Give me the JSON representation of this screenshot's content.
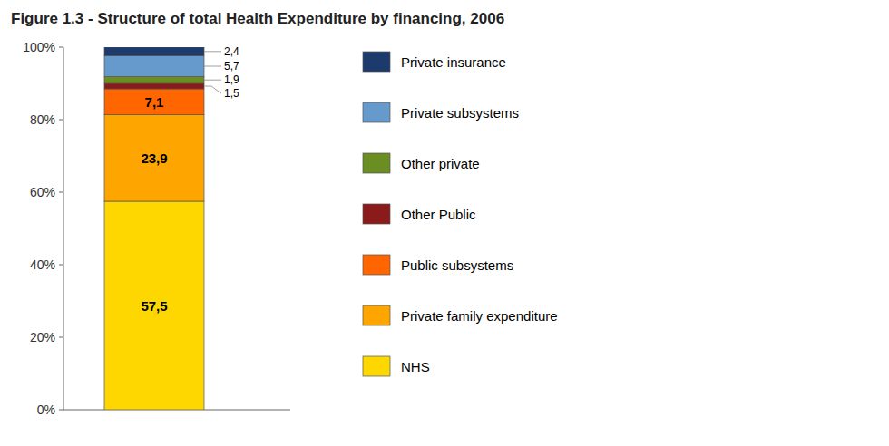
{
  "chart_data": {
    "type": "bar",
    "stacked": true,
    "title": "Figure 1.3 - Structure of total Health Expenditure by financing, 2006",
    "categories": [
      null
    ],
    "series": [
      {
        "name": "NHS",
        "color": "#FFD700",
        "values": [
          57.5
        ],
        "value_labels": [
          "57,5"
        ]
      },
      {
        "name": "Private family expenditure",
        "color": "#FFA500",
        "values": [
          23.9
        ],
        "value_labels": [
          "23,9"
        ]
      },
      {
        "name": "Public subsystems",
        "color": "#FF6600",
        "values": [
          7.1
        ],
        "value_labels": [
          "7,1"
        ]
      },
      {
        "name": "Other Public",
        "color": "#8B1A1A",
        "values": [
          1.5
        ],
        "value_labels": [
          "1,5"
        ]
      },
      {
        "name": "Other private",
        "color": "#6B8E23",
        "values": [
          1.9
        ],
        "value_labels": [
          "1,9"
        ]
      },
      {
        "name": "Private subsystems",
        "color": "#6699CC",
        "values": [
          5.7
        ],
        "value_labels": [
          "5,7"
        ]
      },
      {
        "name": "Private insurance",
        "color": "#1C3A6B",
        "values": [
          2.4
        ],
        "value_labels": [
          "2,4"
        ]
      }
    ],
    "ylim": [
      0,
      100
    ],
    "yticks": [
      {
        "value": 0,
        "label": "0%"
      },
      {
        "value": 20,
        "label": "20%"
      },
      {
        "value": 40,
        "label": "40%"
      },
      {
        "value": 60,
        "label": "60%"
      },
      {
        "value": 80,
        "label": "80%"
      },
      {
        "value": 100,
        "label": "100%"
      }
    ],
    "data_labels": true,
    "tick_labels": "y",
    "legend": "right",
    "grid": false
  }
}
